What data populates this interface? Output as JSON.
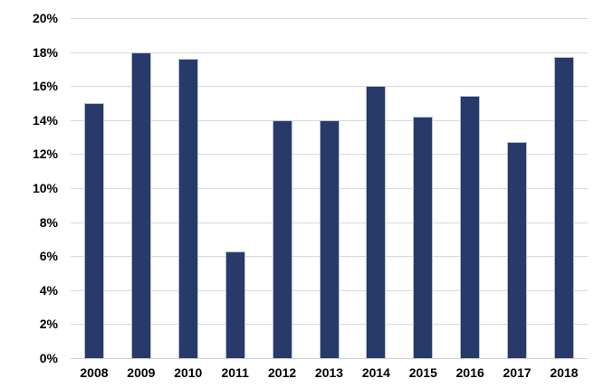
{
  "chart_data": {
    "type": "bar",
    "title": "",
    "xlabel": "",
    "ylabel": "",
    "categories": [
      "2008",
      "2009",
      "2010",
      "2011",
      "2012",
      "2013",
      "2014",
      "2015",
      "2016",
      "2017",
      "2018"
    ],
    "values": [
      15.0,
      18.0,
      17.6,
      6.3,
      14.0,
      14.0,
      16.0,
      14.2,
      15.4,
      12.7,
      17.7
    ],
    "ylim": [
      0,
      20
    ],
    "ytick_values": [
      0,
      2,
      4,
      6,
      8,
      10,
      12,
      14,
      16,
      18,
      20
    ],
    "ytick_labels": [
      "0%",
      "2%",
      "4%",
      "6%",
      "8%",
      "10%",
      "12%",
      "14%",
      "16%",
      "18%",
      "20%"
    ],
    "grid": true,
    "legend": false,
    "bar_color": "#273a69",
    "bar_border_color": "#b9c0d5",
    "gridline_color": "#d9d9d9",
    "axis_line_color": "#d0d0d0",
    "tick_label_color": "#000000",
    "background_color": "#ffffff"
  }
}
